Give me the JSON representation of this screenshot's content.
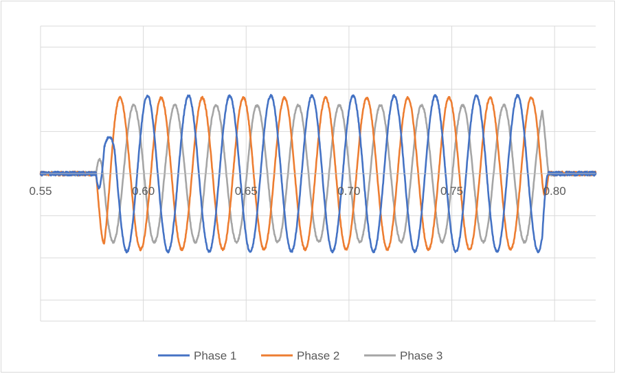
{
  "chart_data": {
    "type": "line",
    "title": "",
    "xlabel": "",
    "ylabel": "",
    "xlim": [
      0.55,
      0.82
    ],
    "ylim": [
      -1.4,
      1.4
    ],
    "y_gridlines": [
      -1.2,
      -0.8,
      -0.4,
      0.0,
      0.4,
      0.8,
      1.2
    ],
    "x_ticks": [
      0.55,
      0.6,
      0.65,
      0.7,
      0.75,
      0.8
    ],
    "x_tick_labels": [
      "0.55",
      "0.60",
      "0.65",
      "0.70",
      "0.75",
      "0.80"
    ],
    "y_tick_labels_shown": false,
    "grid": true,
    "legend_position": "bottom",
    "signal": {
      "frequency_hz": 50,
      "on_time": 0.577,
      "off_time": 0.797,
      "noise_amplitude": 0.02
    },
    "series": [
      {
        "name": "Phase 1",
        "color": "#4472C4",
        "amplitude": 0.74,
        "phase_deg": 0,
        "initial_dip": -1.12
      },
      {
        "name": "Phase 2",
        "color": "#ED7D31",
        "amplitude": 0.72,
        "phase_deg": -120,
        "initial_dip": -0.3
      },
      {
        "name": "Phase 3",
        "color": "#A5A5A5",
        "amplitude": 0.65,
        "phase_deg": 120,
        "initial_dip": 0
      }
    ]
  }
}
